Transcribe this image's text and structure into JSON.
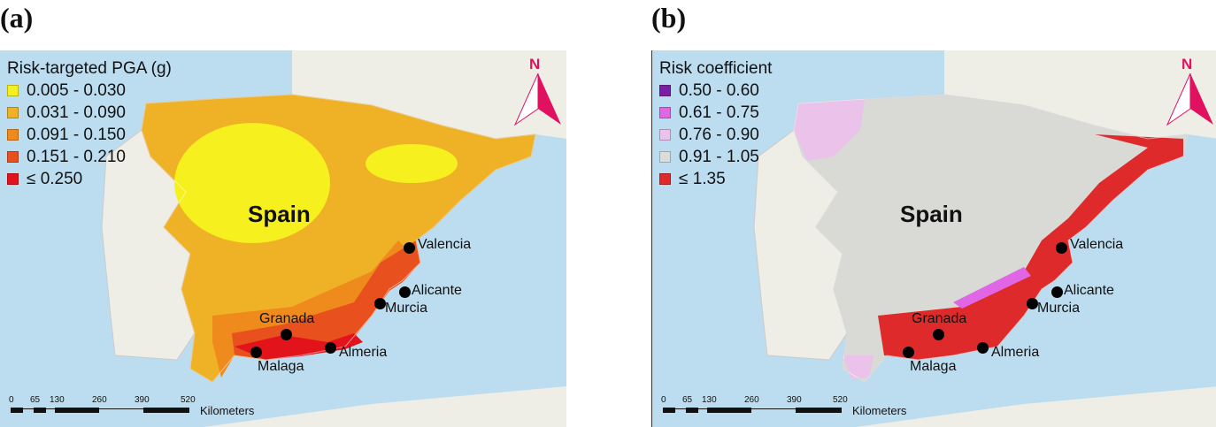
{
  "panels": [
    {
      "label": "(a)",
      "legend_title": "Risk-targeted PGA (g)",
      "legend": [
        {
          "range": "0.005 - 0.030",
          "color": "#f5f01e"
        },
        {
          "range": "0.031 - 0.090",
          "color": "#efb125"
        },
        {
          "range": "0.091 - 0.150",
          "color": "#ef8a1c"
        },
        {
          "range": "0.151 - 0.210",
          "color": "#e8501e"
        },
        {
          "range": "≤ 0.250",
          "color": "#e3131b"
        }
      ]
    },
    {
      "label": "(b)",
      "legend_title": "Risk coefficient",
      "legend": [
        {
          "range": "0.50 - 0.60",
          "color": "#7b1fa2"
        },
        {
          "range": "0.61 - 0.75",
          "color": "#e066e6"
        },
        {
          "range": "0.76 - 0.90",
          "color": "#eac2ea"
        },
        {
          "range": "0.91 - 1.05",
          "color": "#dcdcdc"
        },
        {
          "range": "≤ 1.35",
          "color": "#de2a2a"
        }
      ]
    }
  ],
  "country": "Spain",
  "north": "N",
  "cities": [
    "Valencia",
    "Alicante",
    "Murcia",
    "Granada",
    "Almeria",
    "Malaga"
  ],
  "scale": {
    "ticks": [
      "0",
      "65",
      "130",
      "260",
      "390",
      "520"
    ],
    "unit": "Kilometers"
  }
}
